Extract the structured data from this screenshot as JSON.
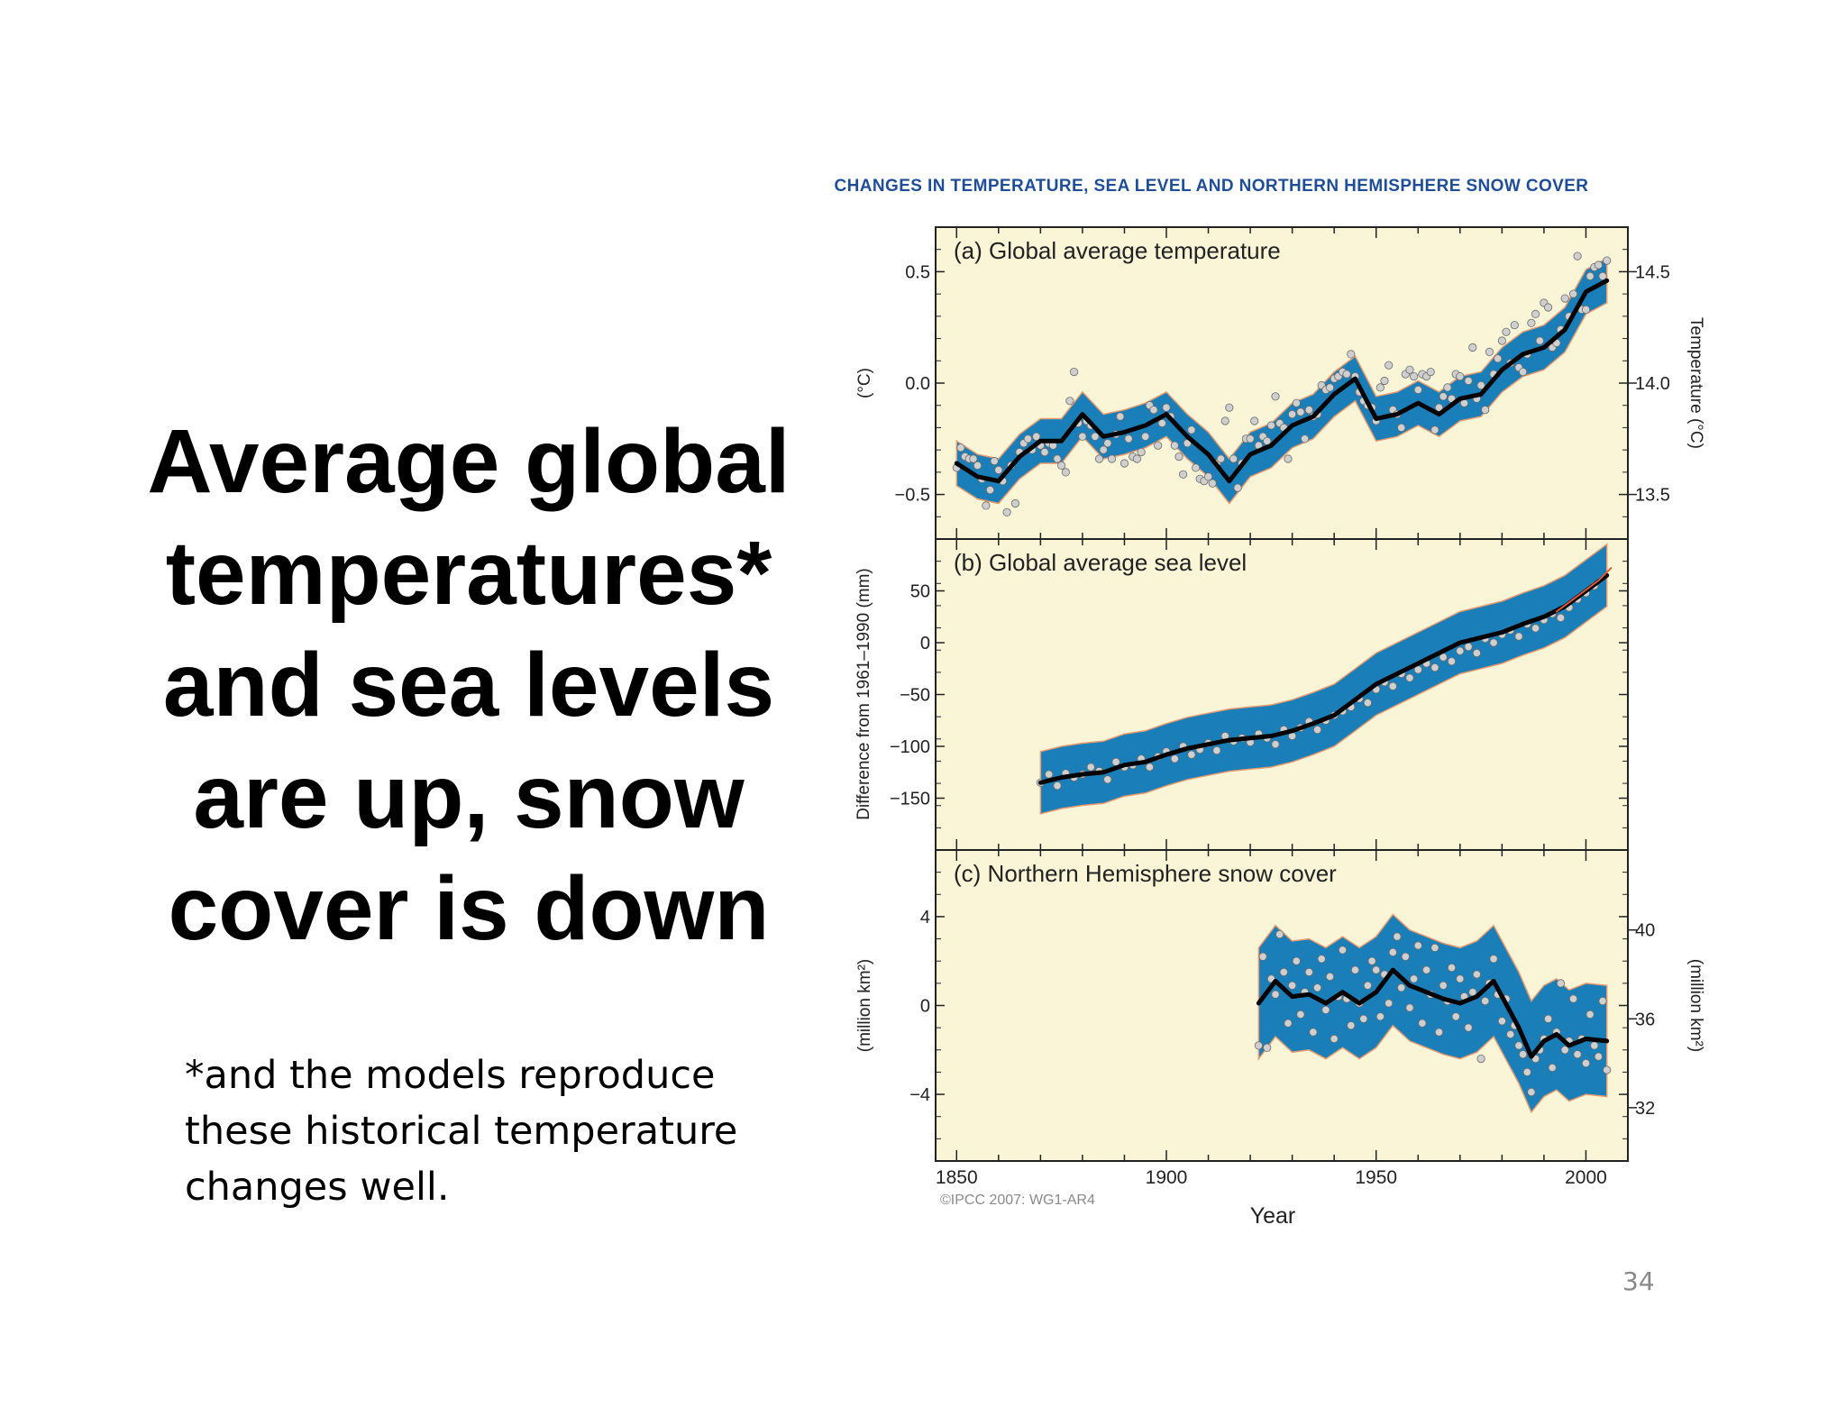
{
  "slide": {
    "title_lines": [
      "Average global",
      "temperatures*",
      "and sea levels",
      "are up, snow",
      "cover is down"
    ],
    "footnote_lines": [
      "*and the models reproduce",
      "these historical temperature",
      "changes well."
    ],
    "page_number": "34"
  },
  "colors": {
    "panel_background": "#fbf5d8",
    "band_fill": "#1a7fb8",
    "band_outline": "#e69a6e",
    "smooth_line": "#000000",
    "dots": "#cfcfcf",
    "title_blue": "#1f4e96",
    "recent_line": "#e05a3a"
  },
  "figure": {
    "title": "Changes in Temperature, Sea Level and Northern Hemisphere Snow Cover",
    "xlabel": "Year",
    "credit": "©IPCC 2007: WG1-AR4",
    "xticks": [
      "1850",
      "1900",
      "1950",
      "2000"
    ]
  },
  "chart_data": [
    {
      "type": "line",
      "title": "(a) Global average temperature",
      "ylabel_left": "(°C)",
      "ylabel_right": "Temperature (°C)",
      "xlim": [
        1845,
        2010
      ],
      "ylim": [
        -0.7,
        0.7
      ],
      "yticks_left": [
        "0.5",
        "0.0",
        "−0.5"
      ],
      "yticks_right": [
        "14.5",
        "14.0",
        "13.5"
      ],
      "yticks_left_values": [
        0.5,
        0.0,
        -0.5
      ],
      "yticks_right_values": [
        0.5,
        0.0,
        -0.5
      ],
      "band_halfwidth": 0.1,
      "series": [
        {
          "x": [
            1850,
            1855,
            1860,
            1865,
            1870,
            1875,
            1880,
            1885,
            1890,
            1895,
            1900,
            1905,
            1910,
            1915,
            1920,
            1925,
            1930,
            1935,
            1940,
            1945,
            1950,
            1955,
            1960,
            1965,
            1970,
            1975,
            1980,
            1985,
            1990,
            1995,
            2000,
            2005
          ],
          "y": [
            -0.36,
            -0.42,
            -0.44,
            -0.33,
            -0.26,
            -0.26,
            -0.14,
            -0.24,
            -0.22,
            -0.19,
            -0.14,
            -0.24,
            -0.32,
            -0.44,
            -0.32,
            -0.28,
            -0.19,
            -0.15,
            -0.05,
            0.02,
            -0.16,
            -0.14,
            -0.09,
            -0.14,
            -0.07,
            -0.05,
            0.06,
            0.13,
            0.16,
            0.24,
            0.41,
            0.46
          ]
        }
      ],
      "points": [
        {
          "x": [
            1850,
            1851,
            1852,
            1853,
            1854,
            1855,
            1856,
            1857,
            1858,
            1859,
            1860,
            1861,
            1862,
            1863,
            1864,
            1865,
            1866,
            1867,
            1868,
            1869,
            1870,
            1871,
            1872,
            1873,
            1874,
            1875,
            1876,
            1877,
            1878,
            1879,
            1880,
            1881,
            1882,
            1883,
            1884,
            1885,
            1886,
            1887,
            1888,
            1889,
            1890,
            1891,
            1892,
            1893,
            1894,
            1895,
            1896,
            1897,
            1898,
            1899,
            1900,
            1901,
            1902,
            1903,
            1904,
            1905,
            1906,
            1907,
            1908,
            1909,
            1910,
            1911,
            1912,
            1913,
            1914,
            1915,
            1916,
            1917,
            1918,
            1919,
            1920,
            1921,
            1922,
            1923,
            1924,
            1925,
            1926,
            1927,
            1928,
            1929,
            1930,
            1931,
            1932,
            1933,
            1934,
            1935,
            1936,
            1937,
            1938,
            1939,
            1940,
            1941,
            1942,
            1943,
            1944,
            1945,
            1946,
            1947,
            1948,
            1949,
            1950,
            1951,
            1952,
            1953,
            1954,
            1955,
            1956,
            1957,
            1958,
            1959,
            1960,
            1961,
            1962,
            1963,
            1964,
            1965,
            1966,
            1967,
            1968,
            1969,
            1970,
            1971,
            1972,
            1973,
            1974,
            1975,
            1976,
            1977,
            1978,
            1979,
            1980,
            1981,
            1982,
            1983,
            1984,
            1985,
            1986,
            1987,
            1988,
            1989,
            1990,
            1991,
            1992,
            1993,
            1994,
            1995,
            1996,
            1997,
            1998,
            1999,
            2000,
            2001,
            2002,
            2003,
            2004,
            2005
          ],
          "y": [
            -0.38,
            -0.29,
            -0.33,
            -0.34,
            -0.34,
            -0.37,
            -0.43,
            -0.55,
            -0.48,
            -0.35,
            -0.39,
            -0.44,
            -0.58,
            -0.37,
            -0.54,
            -0.31,
            -0.27,
            -0.25,
            -0.3,
            -0.24,
            -0.28,
            -0.31,
            -0.27,
            -0.28,
            -0.34,
            -0.37,
            -0.4,
            -0.08,
            0.05,
            -0.18,
            -0.24,
            -0.17,
            -0.19,
            -0.24,
            -0.34,
            -0.3,
            -0.27,
            -0.34,
            -0.23,
            -0.15,
            -0.36,
            -0.25,
            -0.33,
            -0.34,
            -0.31,
            -0.24,
            -0.1,
            -0.12,
            -0.28,
            -0.18,
            -0.11,
            -0.15,
            -0.28,
            -0.33,
            -0.41,
            -0.27,
            -0.21,
            -0.38,
            -0.43,
            -0.44,
            -0.42,
            -0.45,
            -0.36,
            -0.34,
            -0.17,
            -0.11,
            -0.34,
            -0.47,
            -0.36,
            -0.25,
            -0.25,
            -0.17,
            -0.28,
            -0.24,
            -0.26,
            -0.19,
            -0.06,
            -0.18,
            -0.2,
            -0.34,
            -0.14,
            -0.09,
            -0.13,
            -0.25,
            -0.12,
            -0.15,
            -0.14,
            -0.01,
            -0.03,
            -0.02,
            0.02,
            0.03,
            0.05,
            0.04,
            0.13,
            0.03,
            -0.04,
            -0.08,
            -0.1,
            -0.11,
            -0.17,
            -0.02,
            0.01,
            0.08,
            -0.12,
            -0.14,
            -0.2,
            0.04,
            0.06,
            0.03,
            -0.03,
            0.04,
            0.03,
            0.05,
            -0.21,
            -0.11,
            -0.06,
            -0.02,
            -0.07,
            0.04,
            0.03,
            -0.09,
            0.01,
            0.16,
            -0.07,
            -0.01,
            -0.12,
            0.14,
            0.04,
            0.11,
            0.19,
            0.23,
            0.09,
            0.26,
            0.07,
            0.05,
            0.13,
            0.27,
            0.31,
            0.19,
            0.36,
            0.34,
            0.16,
            0.18,
            0.24,
            0.38,
            0.3,
            0.4,
            0.57,
            0.33,
            0.33,
            0.48,
            0.52,
            0.53,
            0.48,
            0.55
          ]
        }
      ]
    },
    {
      "type": "line",
      "title": "(b) Global average sea level",
      "ylabel_left": "Difference from 1961–1990 (mm)",
      "xlim": [
        1845,
        2010
      ],
      "ylim": [
        -200,
        100
      ],
      "yticks_left": [
        "50",
        "0",
        "−50",
        "−100",
        "−150"
      ],
      "yticks_left_values": [
        50,
        0,
        -50,
        -100,
        -150
      ],
      "band_halfwidth": 30,
      "series": [
        {
          "x": [
            1870,
            1875,
            1880,
            1885,
            1890,
            1895,
            1900,
            1905,
            1910,
            1915,
            1920,
            1925,
            1930,
            1935,
            1940,
            1945,
            1950,
            1955,
            1960,
            1965,
            1970,
            1975,
            1980,
            1985,
            1990,
            1995,
            2000,
            2005
          ],
          "y": [
            -135,
            -130,
            -127,
            -125,
            -118,
            -115,
            -108,
            -102,
            -98,
            -94,
            -92,
            -90,
            -85,
            -78,
            -70,
            -55,
            -40,
            -30,
            -20,
            -10,
            0,
            5,
            10,
            18,
            25,
            35,
            50,
            65
          ]
        },
        {
          "name": "recent",
          "x": [
            1993,
            1998,
            2003,
            2006
          ],
          "y": [
            30,
            45,
            60,
            72
          ]
        }
      ],
      "points": [
        {
          "x": [
            1870,
            1872,
            1874,
            1876,
            1878,
            1880,
            1882,
            1884,
            1886,
            1888,
            1890,
            1892,
            1894,
            1896,
            1898,
            1900,
            1902,
            1904,
            1906,
            1908,
            1910,
            1912,
            1914,
            1916,
            1918,
            1920,
            1922,
            1924,
            1926,
            1928,
            1930,
            1932,
            1934,
            1936,
            1938,
            1940,
            1942,
            1944,
            1946,
            1948,
            1950,
            1952,
            1954,
            1956,
            1958,
            1960,
            1962,
            1964,
            1966,
            1968,
            1970,
            1972,
            1974,
            1976,
            1978,
            1980,
            1982,
            1984,
            1986,
            1988,
            1990,
            1992,
            1994,
            1996,
            1998,
            2000,
            2002
          ],
          "y": [
            -135,
            -127,
            -138,
            -126,
            -130,
            -127,
            -120,
            -124,
            -132,
            -115,
            -120,
            -118,
            -112,
            -120,
            -110,
            -105,
            -112,
            -100,
            -108,
            -103,
            -97,
            -104,
            -90,
            -95,
            -92,
            -96,
            -88,
            -92,
            -98,
            -84,
            -90,
            -82,
            -76,
            -84,
            -75,
            -70,
            -66,
            -62,
            -54,
            -58,
            -45,
            -38,
            -42,
            -30,
            -34,
            -26,
            -20,
            -24,
            -14,
            -18,
            -8,
            -4,
            -10,
            4,
            0,
            8,
            12,
            6,
            18,
            14,
            22,
            28,
            24,
            34,
            42,
            48,
            55
          ]
        }
      ]
    },
    {
      "type": "line",
      "title": "(c) Northern Hemisphere snow cover",
      "ylabel_left": "(million km²)",
      "ylabel_right": "(million km²)",
      "xlim": [
        1845,
        2010
      ],
      "ylim": [
        -7,
        7
      ],
      "yticks_left": [
        "4",
        "0",
        "−4"
      ],
      "yticks_right": [
        "40",
        "36",
        "32"
      ],
      "yticks_left_values": [
        4,
        0,
        -4
      ],
      "yticks_right_values": [
        3.4,
        -0.6,
        -4.6
      ],
      "band_halfwidth": 2.5,
      "series": [
        {
          "x": [
            1922,
            1926,
            1930,
            1934,
            1938,
            1942,
            1946,
            1950,
            1954,
            1958,
            1962,
            1966,
            1970,
            1974,
            1978,
            1980,
            1984,
            1987,
            1990,
            1993,
            1996,
            2000,
            2005
          ],
          "y": [
            0.1,
            1.1,
            0.4,
            0.5,
            0.1,
            0.6,
            0.1,
            0.6,
            1.6,
            0.9,
            0.6,
            0.3,
            0.1,
            0.4,
            1.1,
            0.4,
            -1.0,
            -2.3,
            -1.6,
            -1.3,
            -1.8,
            -1.5,
            -1.6
          ]
        }
      ],
      "points": [
        {
          "x": [
            1922,
            1923,
            1924,
            1925,
            1926,
            1927,
            1928,
            1929,
            1930,
            1931,
            1932,
            1933,
            1934,
            1935,
            1936,
            1937,
            1938,
            1939,
            1940,
            1941,
            1942,
            1943,
            1944,
            1945,
            1946,
            1947,
            1948,
            1949,
            1950,
            1951,
            1952,
            1953,
            1954,
            1955,
            1956,
            1957,
            1958,
            1959,
            1960,
            1961,
            1962,
            1963,
            1964,
            1965,
            1966,
            1967,
            1968,
            1969,
            1970,
            1971,
            1972,
            1973,
            1974,
            1975,
            1976,
            1977,
            1978,
            1979,
            1980,
            1981,
            1982,
            1983,
            1984,
            1985,
            1986,
            1987,
            1988,
            1989,
            1990,
            1991,
            1992,
            1993,
            1994,
            1995,
            1996,
            1997,
            1998,
            1999,
            2000,
            2001,
            2002,
            2003,
            2004,
            2005
          ],
          "y": [
            -1.8,
            2.2,
            -1.9,
            1.2,
            0.5,
            3.2,
            1.5,
            -0.8,
            0.9,
            2.0,
            -0.4,
            0.6,
            1.5,
            -1.2,
            0.8,
            2.1,
            -0.2,
            1.3,
            -1.5,
            0.4,
            2.5,
            0.3,
            -0.9,
            1.6,
            0.1,
            -0.6,
            0.9,
            2.0,
            1.6,
            -0.5,
            1.4,
            0.1,
            2.4,
            3.1,
            0.8,
            2.2,
            -0.1,
            1.2,
            2.7,
            -0.8,
            1.6,
            0.5,
            2.6,
            -1.2,
            0.9,
            0.2,
            1.7,
            -0.5,
            1.2,
            0.4,
            -1.0,
            0.6,
            1.4,
            -2.4,
            0.2,
            1.0,
            2.1,
            0.5,
            -0.7,
            0.3,
            -1.3,
            -0.9,
            -1.8,
            -2.2,
            -3.0,
            -3.9,
            -2.4,
            -2.0,
            -1.5,
            -0.6,
            -2.8,
            -1.2,
            1.0,
            -2.0,
            -1.6,
            0.3,
            -2.2,
            -1.5,
            -2.6,
            -0.4,
            -1.8,
            -2.3,
            0.2,
            -2.9
          ]
        }
      ]
    }
  ]
}
